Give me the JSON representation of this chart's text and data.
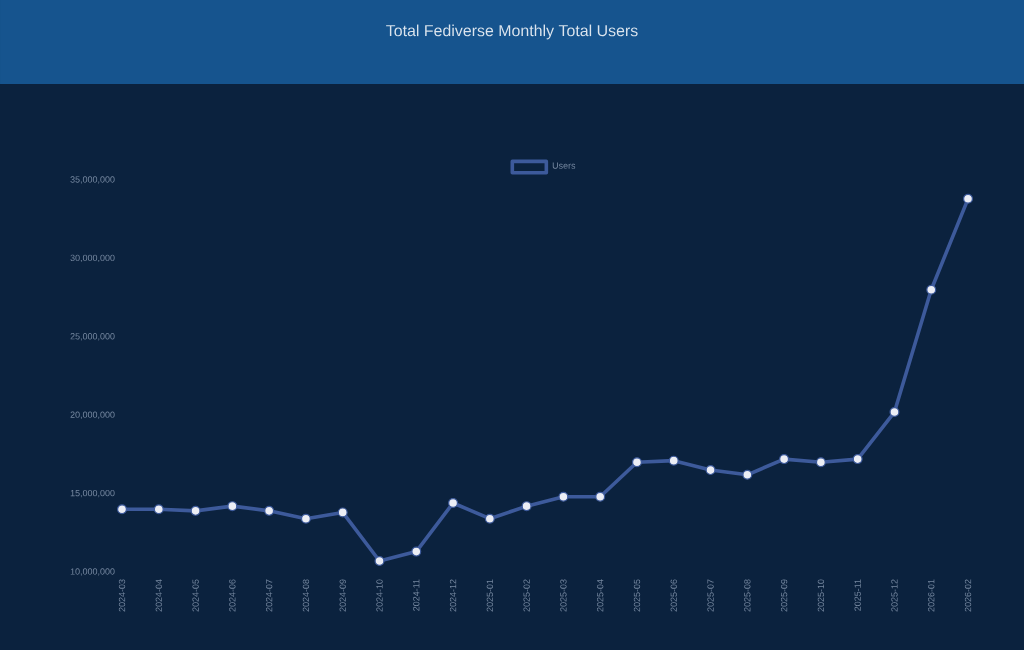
{
  "chart_data": {
    "type": "line",
    "title": "Total Fediverse Monthly Total Users",
    "categories": [
      "2024-03",
      "2024-04",
      "2024-05",
      "2024-06",
      "2024-07",
      "2024-08",
      "2024-09",
      "2024-10",
      "2024-11",
      "2024-12",
      "2025-01",
      "2025-02",
      "2025-03",
      "2025-04",
      "2025-05",
      "2025-06",
      "2025-07",
      "2025-08",
      "2025-09",
      "2025-10",
      "2025-11",
      "2025-12",
      "2026-01",
      "2026-02"
    ],
    "series": [
      {
        "name": "Users",
        "color": "#3d5a9b",
        "values": [
          14000000,
          14000000,
          13900000,
          14200000,
          13900000,
          13400000,
          13800000,
          10700000,
          11300000,
          14400000,
          13400000,
          14200000,
          14800000,
          14800000,
          17000000,
          17100000,
          16500000,
          16200000,
          17200000,
          17000000,
          17200000,
          20200000,
          28000000,
          33800000
        ]
      }
    ],
    "ylim": [
      10000000,
      35000000
    ],
    "yticks": [
      {
        "value": 10000000,
        "label": "10,000,000"
      },
      {
        "value": 15000000,
        "label": "15,000,000"
      },
      {
        "value": 20000000,
        "label": "20,000,000"
      },
      {
        "value": 25000000,
        "label": "25,000,000"
      },
      {
        "value": 30000000,
        "label": "30,000,000"
      },
      {
        "value": 35000000,
        "label": "35,000,000"
      }
    ],
    "grid": false,
    "legend": "top",
    "marker": "circle",
    "line_style": "solid"
  }
}
